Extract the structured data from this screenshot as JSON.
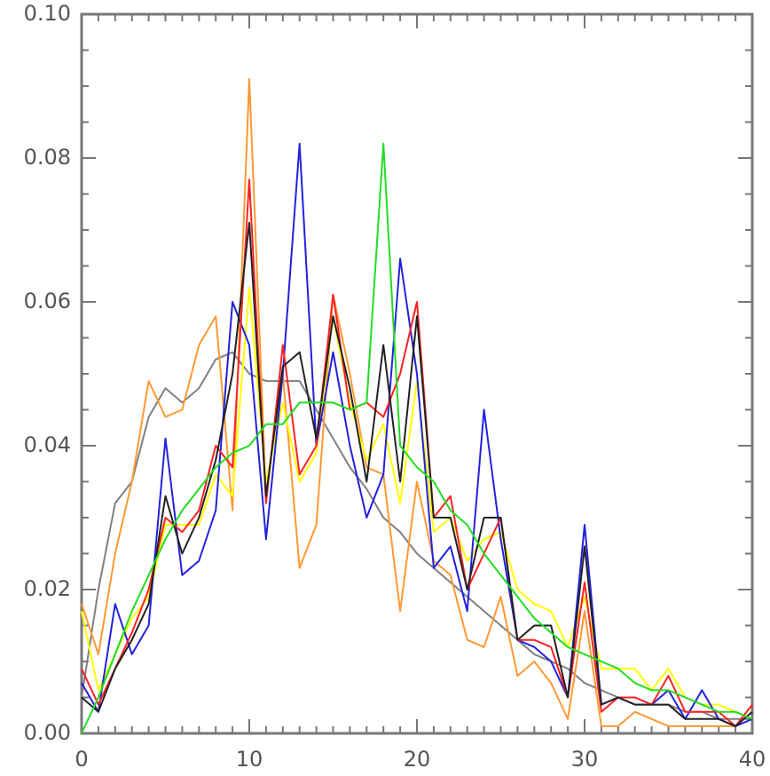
{
  "chart_data": {
    "type": "line",
    "x": [
      0,
      1,
      2,
      3,
      4,
      5,
      6,
      7,
      8,
      9,
      10,
      11,
      12,
      13,
      14,
      15,
      16,
      17,
      18,
      19,
      20,
      21,
      22,
      23,
      24,
      25,
      26,
      27,
      28,
      29,
      30,
      31,
      32,
      33,
      34,
      35,
      36,
      37,
      38,
      39,
      40
    ],
    "xlim": [
      0,
      40
    ],
    "xticks": [
      0,
      10,
      20,
      30,
      40
    ],
    "ylim": [
      0,
      0.1
    ],
    "yticks": [
      {
        "value": 0,
        "label": "0.00"
      },
      {
        "value": 0.02,
        "label": "0.02"
      },
      {
        "value": 0.04,
        "label": "0.04"
      },
      {
        "value": 0.06,
        "label": "0.06"
      },
      {
        "value": 0.08,
        "label": "0.08"
      },
      {
        "value": 0.1,
        "label": "0.10"
      }
    ],
    "series": [
      {
        "color": "#808080",
        "values": [
          0.005,
          0.02,
          0.032,
          0.035,
          0.044,
          0.048,
          0.046,
          0.048,
          0.052,
          0.053,
          0.05,
          0.049,
          0.049,
          0.049,
          0.045,
          0.041,
          0.037,
          0.034,
          0.03,
          0.028,
          0.025,
          0.023,
          0.021,
          0.019,
          0.017,
          0.015,
          0.013,
          0.011,
          0.01,
          0.009,
          0.007,
          0.006,
          0.005,
          0.005,
          0.004,
          0.004,
          0.003,
          0.003,
          0.002,
          0.002,
          0.002
        ]
      },
      {
        "color": "#ff9933",
        "values": [
          0.018,
          0.011,
          0.025,
          0.035,
          0.049,
          0.044,
          0.045,
          0.054,
          0.058,
          0.031,
          0.091,
          0.033,
          0.05,
          0.023,
          0.029,
          0.061,
          0.05,
          0.037,
          0.036,
          0.017,
          0.035,
          0.024,
          0.022,
          0.013,
          0.012,
          0.019,
          0.008,
          0.01,
          0.007,
          0.002,
          0.017,
          0.001,
          0.001,
          0.003,
          0.002,
          0.001,
          0.001,
          0.001,
          0.001,
          0.001,
          0.003
        ]
      },
      {
        "color": "#ffff00",
        "values": [
          0.017,
          0.006,
          0.011,
          0.016,
          0.019,
          0.029,
          0.029,
          0.029,
          0.036,
          0.033,
          0.062,
          0.035,
          0.046,
          0.035,
          0.039,
          0.058,
          0.046,
          0.038,
          0.043,
          0.032,
          0.049,
          0.028,
          0.03,
          0.024,
          0.027,
          0.028,
          0.02,
          0.018,
          0.017,
          0.012,
          0.019,
          0.009,
          0.009,
          0.009,
          0.006,
          0.009,
          0.005,
          0.004,
          0.004,
          0.003,
          0.002
        ]
      },
      {
        "color": "#2222dd",
        "values": [
          0.007,
          0.003,
          0.018,
          0.011,
          0.015,
          0.041,
          0.022,
          0.024,
          0.031,
          0.06,
          0.054,
          0.027,
          0.05,
          0.082,
          0.04,
          0.053,
          0.04,
          0.03,
          0.036,
          0.066,
          0.05,
          0.023,
          0.026,
          0.017,
          0.045,
          0.027,
          0.013,
          0.012,
          0.01,
          0.005,
          0.029,
          0.004,
          0.005,
          0.004,
          0.004,
          0.006,
          0.002,
          0.006,
          0.002,
          0.001,
          0.002
        ]
      },
      {
        "color": "#ff2222",
        "values": [
          0.009,
          0.004,
          0.009,
          0.014,
          0.02,
          0.03,
          0.028,
          0.031,
          0.04,
          0.037,
          0.077,
          0.032,
          0.054,
          0.036,
          0.04,
          0.061,
          0.045,
          0.046,
          0.044,
          0.05,
          0.06,
          0.03,
          0.033,
          0.02,
          0.025,
          0.03,
          0.013,
          0.013,
          0.012,
          0.005,
          0.021,
          0.003,
          0.005,
          0.005,
          0.004,
          0.008,
          0.003,
          0.003,
          0.003,
          0.001,
          0.004
        ]
      },
      {
        "color": "#222222",
        "values": [
          0.005,
          0.003,
          0.009,
          0.013,
          0.018,
          0.033,
          0.025,
          0.03,
          0.038,
          0.05,
          0.071,
          0.033,
          0.051,
          0.053,
          0.041,
          0.058,
          0.048,
          0.035,
          0.054,
          0.035,
          0.058,
          0.03,
          0.03,
          0.02,
          0.03,
          0.03,
          0.013,
          0.015,
          0.015,
          0.005,
          0.026,
          0.004,
          0.005,
          0.004,
          0.004,
          0.004,
          0.002,
          0.002,
          0.002,
          0.001,
          0.003
        ]
      },
      {
        "color": "#22dd22",
        "values": [
          0.0,
          0.005,
          0.011,
          0.017,
          0.022,
          0.027,
          0.031,
          0.034,
          0.037,
          0.039,
          0.04,
          0.043,
          0.043,
          0.046,
          0.046,
          0.046,
          0.045,
          0.046,
          0.082,
          0.04,
          0.037,
          0.035,
          0.031,
          0.029,
          0.025,
          0.022,
          0.019,
          0.016,
          0.014,
          0.012,
          0.011,
          0.01,
          0.009,
          0.007,
          0.006,
          0.006,
          0.005,
          0.004,
          0.003,
          0.003,
          0.002
        ]
      }
    ]
  }
}
